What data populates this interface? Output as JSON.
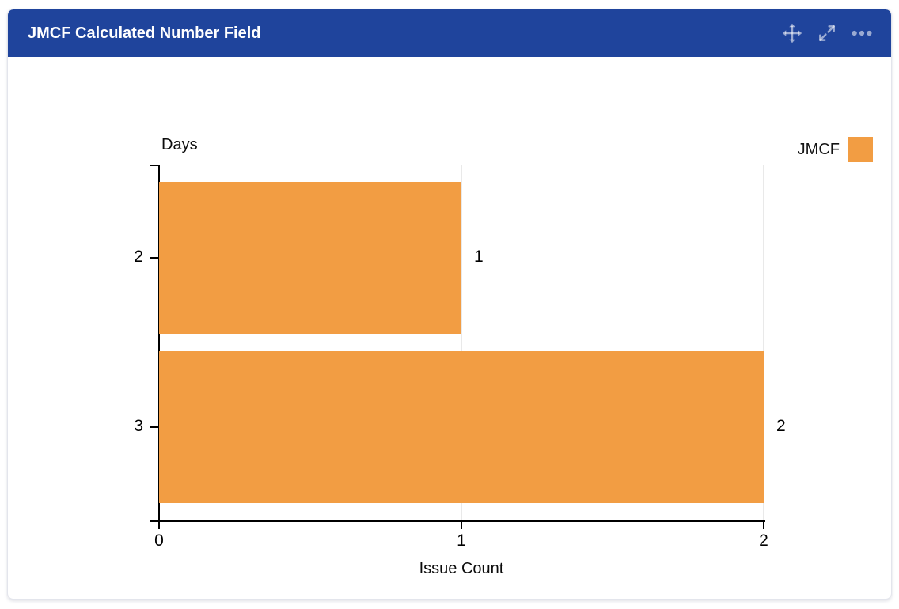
{
  "header": {
    "title": "JMCF Calculated Number Field",
    "actions": [
      {
        "icon": "move-icon"
      },
      {
        "icon": "expand-icon"
      },
      {
        "icon": "more-options-icon"
      }
    ]
  },
  "chart_data": {
    "type": "bar",
    "orientation": "horizontal",
    "categories": [
      "2",
      "3"
    ],
    "values": [
      1,
      2
    ],
    "bar_value_labels": [
      "1",
      "2"
    ],
    "x_ticks": [
      0,
      1,
      2
    ],
    "xlim": [
      0,
      2
    ],
    "xlabel": "Issue Count",
    "ylabel": "Days",
    "legend": [
      {
        "label": "JMCF",
        "color": "#f29d43"
      }
    ],
    "grid": "vertical-light",
    "legend_position": "top-right"
  },
  "colors": {
    "header_bg": "#1f449c",
    "header_icon": "rgba(255,255,255,0.55)",
    "bar": "#f29d43",
    "axis": "#000000",
    "gridline": "#e9e9e9",
    "card_border": "#e3e5ec"
  }
}
